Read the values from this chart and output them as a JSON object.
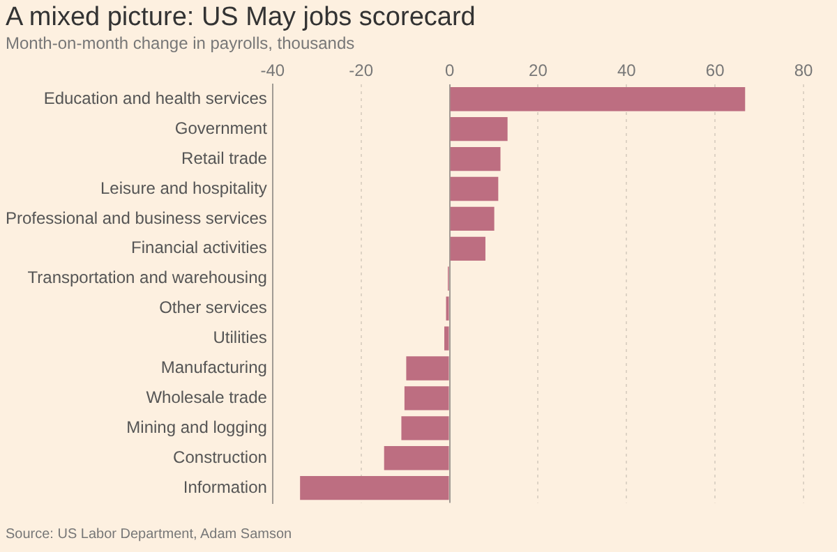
{
  "chart_data": {
    "type": "bar",
    "orientation": "horizontal",
    "title": "A mixed picture: US May jobs scorecard",
    "subtitle": "Month-on-month change in payrolls, thousands",
    "categories": [
      "Education and health services",
      "Government",
      "Retail trade",
      "Leisure and hospitality",
      "Professional and business services",
      "Financial activities",
      "Transportation and warehousing",
      "Other services",
      "Utilities",
      "Manufacturing",
      "Wholesale trade",
      "Mining and logging",
      "Construction",
      "Information"
    ],
    "values": [
      66.8,
      13.1,
      11.5,
      11.0,
      10.1,
      8.1,
      -0.4,
      -0.8,
      -1.2,
      -9.8,
      -10.2,
      -10.9,
      -14.8,
      -33.8
    ],
    "color": "#bd6e81",
    "xlim": [
      -40,
      80
    ],
    "xticks": [
      -40,
      -20,
      0,
      20,
      40,
      60,
      80
    ],
    "grid": "x",
    "annotations": [
      "Source: US Labor Department, Adam Samson"
    ]
  }
}
